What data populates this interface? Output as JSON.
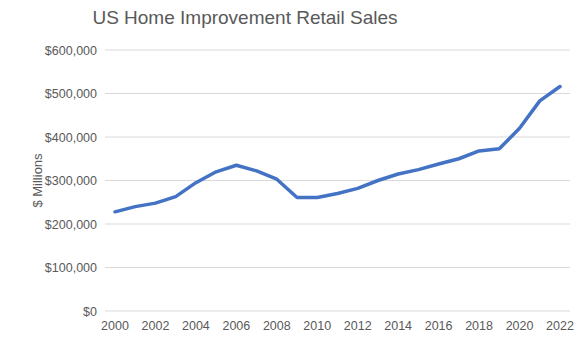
{
  "chart_data": {
    "type": "line",
    "title": "US Home Improvement Retail Sales",
    "y_label": "$ Millions",
    "x": [
      2000,
      2001,
      2002,
      2003,
      2004,
      2005,
      2006,
      2007,
      2008,
      2009,
      2010,
      2011,
      2012,
      2013,
      2014,
      2015,
      2016,
      2017,
      2018,
      2019,
      2020,
      2021,
      2022
    ],
    "values": [
      228000,
      240000,
      248000,
      263000,
      295000,
      320000,
      335000,
      322000,
      303000,
      261000,
      261000,
      270000,
      282000,
      300000,
      315000,
      325000,
      338000,
      350000,
      368000,
      373000,
      420000,
      483000,
      516000
    ],
    "color": "#4472c4",
    "xlim": [
      2000,
      2022
    ],
    "xticks": [
      2000,
      2002,
      2004,
      2006,
      2008,
      2010,
      2012,
      2014,
      2016,
      2018,
      2020,
      2022
    ],
    "ylim": [
      0,
      600000
    ],
    "yticks": [
      {
        "value": 0,
        "label": "$0"
      },
      {
        "value": 100000,
        "label": "$100,000"
      },
      {
        "value": 200000,
        "label": "$200,000"
      },
      {
        "value": 300000,
        "label": "$300,000"
      },
      {
        "value": 400000,
        "label": "$400,000"
      },
      {
        "value": 500000,
        "label": "$500,000"
      },
      {
        "value": 600000,
        "label": "$600,000"
      }
    ],
    "grid": true
  }
}
